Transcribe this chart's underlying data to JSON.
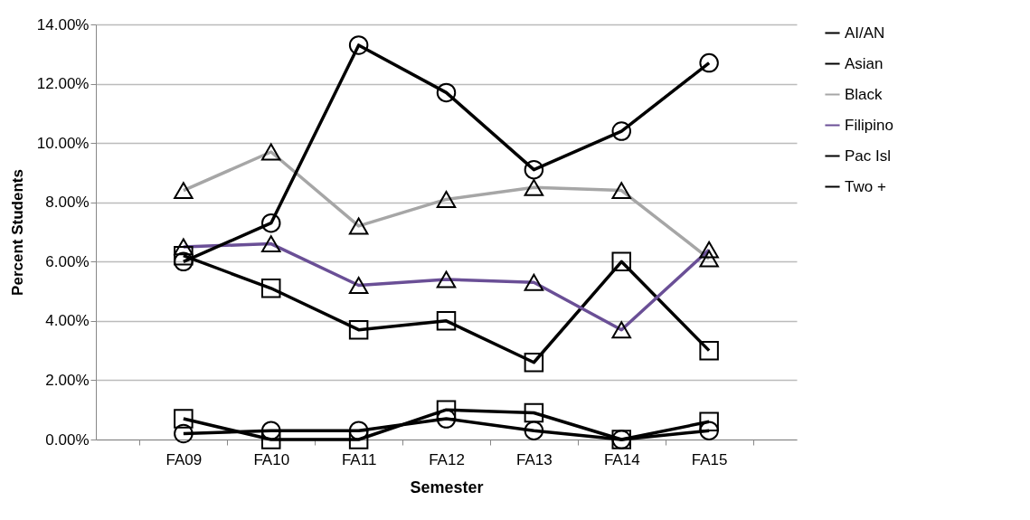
{
  "chart_data": {
    "type": "line",
    "xlabel": "Semester",
    "ylabel": "Percent Students",
    "categories": [
      "FA09",
      "FA10",
      "FA11",
      "FA12",
      "FA13",
      "FA14",
      "FA15"
    ],
    "series": [
      {
        "name": "AI/AN",
        "color": "#000000",
        "marker": "square",
        "values": [
          0.7,
          0,
          0,
          1.0,
          0.9,
          0,
          0.6
        ]
      },
      {
        "name": "Asian",
        "color": "#000000",
        "marker": "square",
        "values": [
          6.2,
          5.1,
          3.7,
          4.0,
          2.6,
          6.0,
          3.0
        ]
      },
      {
        "name": "Black",
        "color": "#a6a6a6",
        "marker": "triangle",
        "values": [
          8.4,
          9.7,
          7.2,
          8.1,
          8.5,
          8.4,
          6.1
        ]
      },
      {
        "name": "Filipino",
        "color": "#6a4f96",
        "marker": "triangle",
        "values": [
          6.5,
          6.6,
          5.2,
          5.4,
          5.3,
          3.7,
          6.4
        ]
      },
      {
        "name": "Pac Isl",
        "color": "#000000",
        "marker": "circle",
        "values": [
          0.2,
          0.3,
          0.3,
          0.7,
          0.3,
          0,
          0.3
        ]
      },
      {
        "name": "Two +",
        "color": "#000000",
        "marker": "circle",
        "values": [
          6.0,
          7.3,
          13.3,
          11.7,
          9.1,
          10.4,
          12.7
        ]
      }
    ],
    "ylim": [
      0,
      14
    ],
    "yticks": [
      {
        "value": 0,
        "label": "0.00%"
      },
      {
        "value": 2,
        "label": "2.00%"
      },
      {
        "value": 4,
        "label": "4.00%"
      },
      {
        "value": 6,
        "label": "6.00%"
      },
      {
        "value": 8,
        "label": "8.00%"
      },
      {
        "value": 10,
        "label": "10.00%"
      },
      {
        "value": 12,
        "label": "12.00%"
      },
      {
        "value": 14,
        "label": "14.00%"
      }
    ],
    "grid": "y",
    "legend": "right",
    "line_style": "solid"
  }
}
